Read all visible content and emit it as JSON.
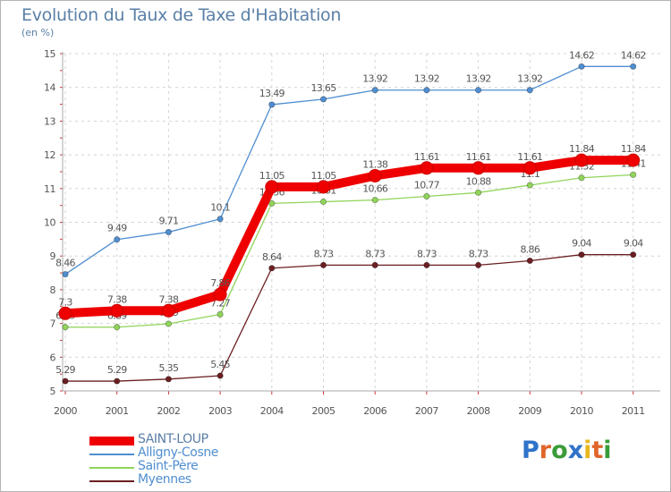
{
  "chart_data": {
    "type": "line",
    "title": "Evolution du Taux de Taxe d'Habitation",
    "subtitle": "(en %)",
    "x": [
      "2000",
      "2001",
      "2002",
      "2003",
      "2004",
      "2005",
      "2006",
      "2007",
      "2008",
      "2009",
      "2010",
      "2011"
    ],
    "ylim": [
      5,
      15
    ],
    "yticks": [
      5,
      6,
      7,
      8,
      9,
      10,
      11,
      12,
      13,
      14,
      15
    ],
    "grid": true,
    "legend_position": "bottom-left",
    "series": [
      {
        "name": "Alligny-Cosne",
        "color": "#4f8ed0",
        "values": [
          8.46,
          9.49,
          9.71,
          10.1,
          13.49,
          13.65,
          13.92,
          13.92,
          13.92,
          13.92,
          14.62,
          14.62
        ],
        "labels": [
          "8.46",
          "9.49",
          "9.71",
          "10.1",
          "13.49",
          "13.65",
          "13.92",
          "13.92",
          "13.92",
          "13.92",
          "14.62",
          "14.62"
        ]
      },
      {
        "name": "Saint-Père",
        "color": "#90d45a",
        "values": [
          6.89,
          6.89,
          6.99,
          7.27,
          10.56,
          10.61,
          10.66,
          10.77,
          10.88,
          11.1,
          11.32,
          11.41
        ],
        "labels": [
          "6.89",
          "6.89",
          "6.99",
          "7.27",
          "10.56",
          "10.61",
          "10.66",
          "10.77",
          "10.88",
          "11.1",
          "11.32",
          "11.41"
        ]
      },
      {
        "name": "Myennes",
        "color": "#6b1f22",
        "values": [
          5.29,
          5.29,
          5.35,
          5.45,
          8.64,
          8.73,
          8.73,
          8.73,
          8.73,
          8.86,
          9.04,
          9.04
        ],
        "labels": [
          "5.29",
          "5.29",
          "5.35",
          "5.45",
          "8.64",
          "8.73",
          "8.73",
          "8.73",
          "8.73",
          "8.86",
          "9.04",
          "9.04"
        ]
      },
      {
        "name": "SAINT-LOUP",
        "color": "#ee0000",
        "values": [
          7.3,
          7.38,
          7.38,
          7.86,
          11.05,
          11.05,
          11.38,
          11.61,
          11.61,
          11.61,
          11.84,
          11.84
        ],
        "labels": [
          "7.3",
          "7.38",
          "7.38",
          "7.86",
          "11.05",
          "11.05",
          "11.38",
          "11.61",
          "11.61",
          "11.61",
          "11.84",
          "11.84"
        ]
      }
    ],
    "legend": [
      {
        "name": "SAINT-LOUP",
        "color": "#ee0000",
        "text_color": "#5a7fa6"
      },
      {
        "name": "Alligny-Cosne",
        "color": "#4f8ed0",
        "text_color": "#4f8ed0"
      },
      {
        "name": "Saint-Père",
        "color": "#90d45a",
        "text_color": "#4f8ed0"
      },
      {
        "name": "Myennes",
        "color": "#6b1f22",
        "text_color": "#4f8ed0"
      }
    ]
  },
  "logo": {
    "text": "Proxiti"
  }
}
